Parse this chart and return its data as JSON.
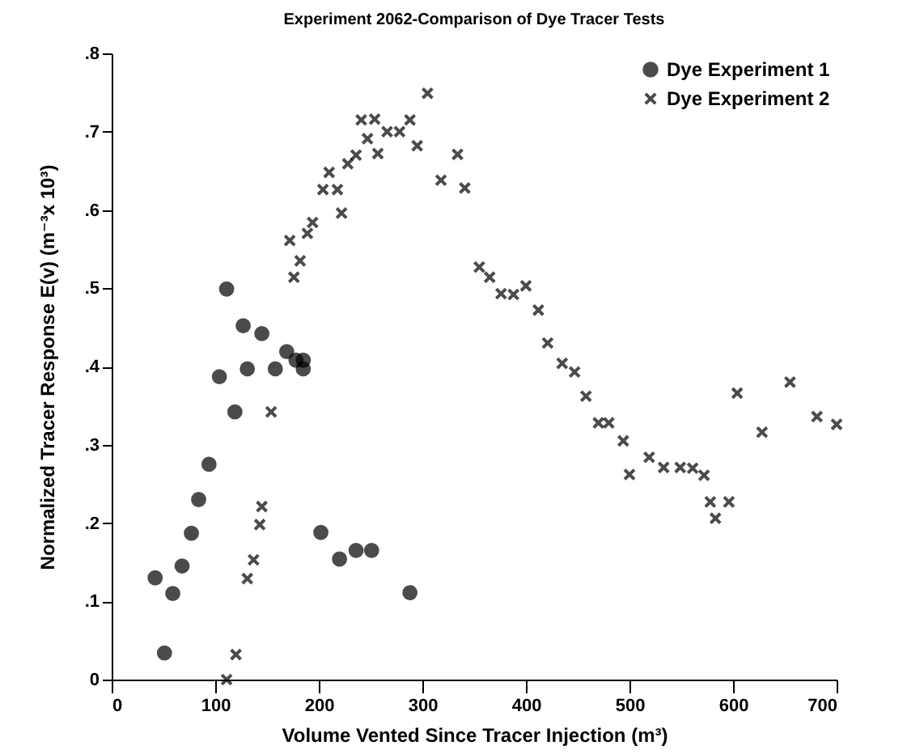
{
  "chart_data": {
    "type": "scatter",
    "title": "Experiment 2062-Comparison of Dye Tracer Tests",
    "xlabel": "Volume Vented Since Tracer Injection (m³)",
    "ylabel": "Normalized Tracer Response E(v) (m⁻³x 10³)",
    "xlim": [
      0,
      700
    ],
    "xticks": [
      0,
      100,
      200,
      300,
      400,
      500,
      600,
      700
    ],
    "ylim": [
      0,
      0.8
    ],
    "yticks": [
      0,
      {
        "value": 0.1,
        "label": ".1"
      },
      {
        "value": 0.2,
        "label": ".2"
      },
      {
        "value": 0.3,
        "label": ".3"
      },
      {
        "value": 0.4,
        "label": ".4"
      },
      {
        "value": 0.5,
        "label": ".5"
      },
      {
        "value": 0.6,
        "label": ".6"
      },
      {
        "value": 0.7,
        "label": ".7"
      },
      {
        "value": 0.8,
        "label": ".8"
      }
    ],
    "grid": false,
    "legend": "top right",
    "series": [
      {
        "name": "Dye Experiment 1",
        "color": "#000000",
        "marker": "circle",
        "x": [
          42,
          51,
          59,
          68,
          77,
          84,
          94,
          104,
          111,
          119,
          127,
          131,
          145,
          158,
          169,
          178,
          185,
          185,
          202,
          220,
          236,
          251,
          288
        ],
        "values": [
          0.13,
          0.034,
          0.11,
          0.145,
          0.187,
          0.23,
          0.275,
          0.387,
          0.499,
          0.342,
          0.452,
          0.397,
          0.442,
          0.397,
          0.419,
          0.408,
          0.408,
          0.397,
          0.188,
          0.154,
          0.165,
          0.165,
          0.111
        ]
      },
      {
        "name": "Dye Experiment 2",
        "color": "#000000",
        "marker": "cross",
        "x": [
          111,
          120,
          131,
          137,
          143,
          145,
          154,
          172,
          176,
          182,
          189,
          194,
          204,
          210,
          218,
          222,
          228,
          236,
          241,
          247,
          254,
          257,
          266,
          278,
          288,
          295,
          305,
          318,
          334,
          341,
          355,
          365,
          376,
          388,
          400,
          412,
          421,
          435,
          447,
          458,
          470,
          480,
          494,
          500,
          519,
          533,
          549,
          561,
          572,
          578,
          583,
          596,
          604,
          628,
          655,
          681,
          700
        ],
        "values": [
          0.0,
          0.032,
          0.129,
          0.153,
          0.198,
          0.221,
          0.342,
          0.561,
          0.514,
          0.535,
          0.57,
          0.584,
          0.626,
          0.648,
          0.626,
          0.596,
          0.659,
          0.67,
          0.715,
          0.691,
          0.716,
          0.672,
          0.7,
          0.7,
          0.715,
          0.682,
          0.749,
          0.638,
          0.671,
          0.628,
          0.527,
          0.514,
          0.493,
          0.492,
          0.503,
          0.472,
          0.43,
          0.404,
          0.393,
          0.362,
          0.328,
          0.328,
          0.305,
          0.262,
          0.284,
          0.271,
          0.271,
          0.27,
          0.261,
          0.227,
          0.206,
          0.227,
          0.366,
          0.316,
          0.38,
          0.336,
          0.326
        ]
      }
    ]
  }
}
